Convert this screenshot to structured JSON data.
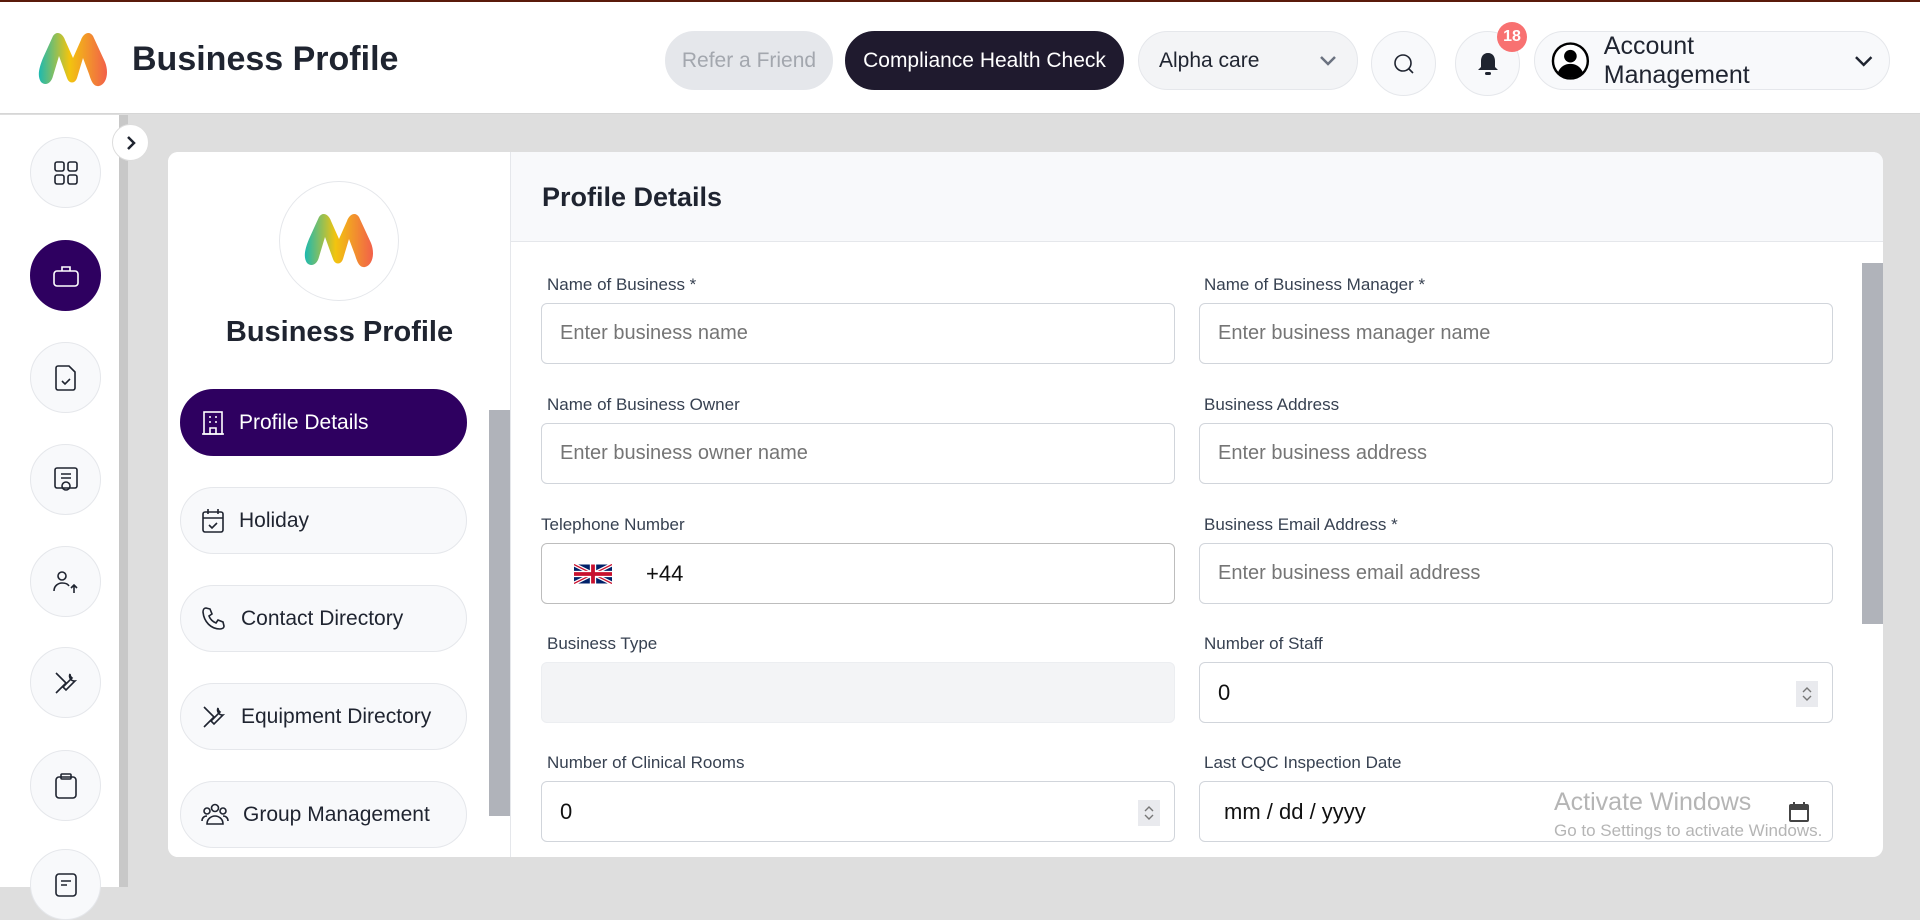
{
  "header": {
    "title": "Business Profile",
    "refer_label": "Refer a Friend",
    "compliance_label": "Compliance Health Check",
    "location_select": "Alpha care",
    "notification_count": "18",
    "account_label": "Account Management"
  },
  "rail": {
    "icons": [
      "grid-icon",
      "briefcase-icon",
      "document-check-icon",
      "certificate-icon",
      "users-upload-icon",
      "tools-icon",
      "clipboard-icon",
      "note-icon"
    ],
    "active": "briefcase-icon"
  },
  "left_panel": {
    "title": "Business Profile",
    "nav": [
      {
        "label": "Profile Details",
        "icon": "building-icon"
      },
      {
        "label": "Holiday",
        "icon": "calendar-check-icon"
      },
      {
        "label": "Contact Directory",
        "icon": "phone-icon"
      },
      {
        "label": "Equipment Directory",
        "icon": "tools-icon"
      },
      {
        "label": "Group Management",
        "icon": "group-icon"
      }
    ]
  },
  "form": {
    "title": "Profile Details",
    "fields": [
      {
        "label": "Name of Business *",
        "placeholder": "Enter business name"
      },
      {
        "label": "Name of Business Manager *",
        "placeholder": "Enter business manager name"
      },
      {
        "label": "Name of Business Owner",
        "placeholder": "Enter business owner name"
      },
      {
        "label": "Business Address",
        "placeholder": "Enter business address"
      },
      {
        "label": "Telephone Number",
        "value": "+44"
      },
      {
        "label": "Business Email Address *",
        "placeholder": "Enter business email address"
      },
      {
        "label": "Business Type",
        "value": ""
      },
      {
        "label": "Number of Staff",
        "value": "0"
      },
      {
        "label": "Number of Clinical Rooms",
        "value": "0"
      },
      {
        "label": "Last CQC Inspection Date",
        "placeholder": "mm / dd / yyyy"
      }
    ]
  },
  "watermark": {
    "title": "Activate Windows",
    "subtitle": "Go to Settings to activate Windows."
  },
  "colors": {
    "accent": "#2e0060",
    "dark_button": "#1f1a2e",
    "badge": "#f87171"
  }
}
